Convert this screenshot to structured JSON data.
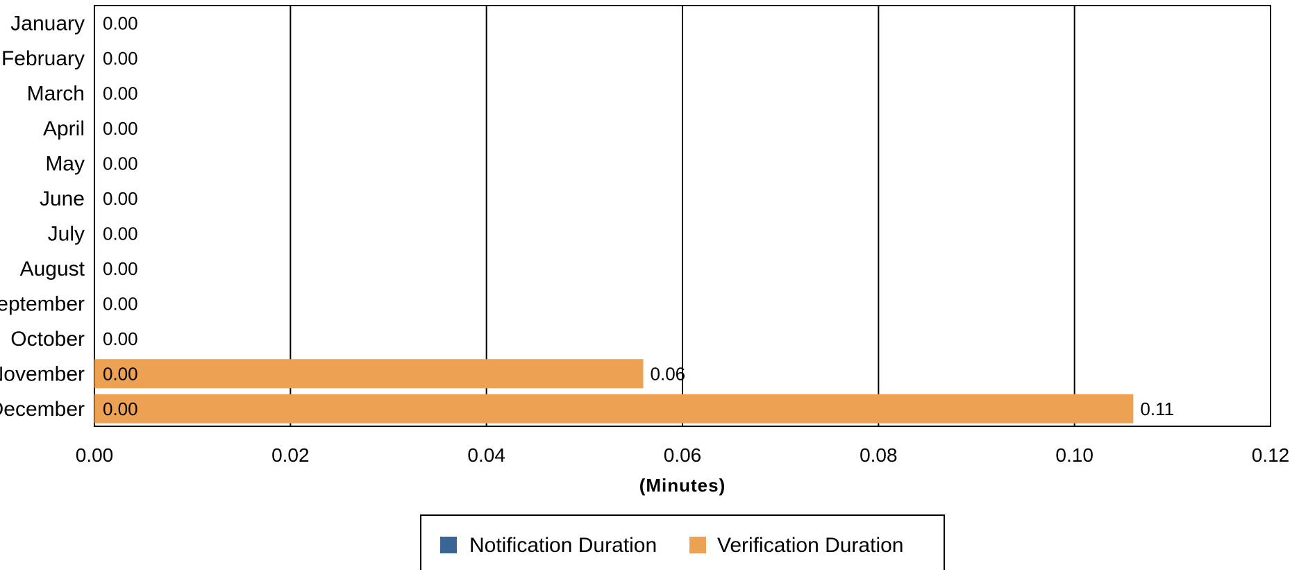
{
  "chart_data": {
    "type": "bar",
    "orientation": "horizontal",
    "categories": [
      "January",
      "February",
      "March",
      "April",
      "May",
      "June",
      "July",
      "August",
      "September",
      "October",
      "November",
      "December"
    ],
    "series": [
      {
        "name": "Notification Duration",
        "color": "#3b6497",
        "values": [
          0,
          0,
          0,
          0,
          0,
          0,
          0,
          0,
          0,
          0,
          0,
          0
        ],
        "labels": [
          "0.00",
          "0.00",
          "0.00",
          "0.00",
          "0.00",
          "0.00",
          "0.00",
          "0.00",
          "0.00",
          "0.00",
          "0.00",
          "0.00"
        ]
      },
      {
        "name": "Verification Duration",
        "color": "#eda152",
        "values": [
          0,
          0,
          0,
          0,
          0,
          0,
          0,
          0,
          0,
          0,
          0.056,
          0.106
        ],
        "labels": [
          "",
          "",
          "",
          "",
          "",
          "",
          "",
          "",
          "",
          "",
          "0.06",
          "0.11"
        ]
      }
    ],
    "x_ticks": [
      "0.00",
      "0.02",
      "0.04",
      "0.06",
      "0.08",
      "0.10",
      "0.12"
    ],
    "xlim": [
      0,
      0.12
    ],
    "xlabel": "(Minutes)",
    "title": "",
    "grid": "vertical",
    "legend_position": "bottom-center"
  }
}
